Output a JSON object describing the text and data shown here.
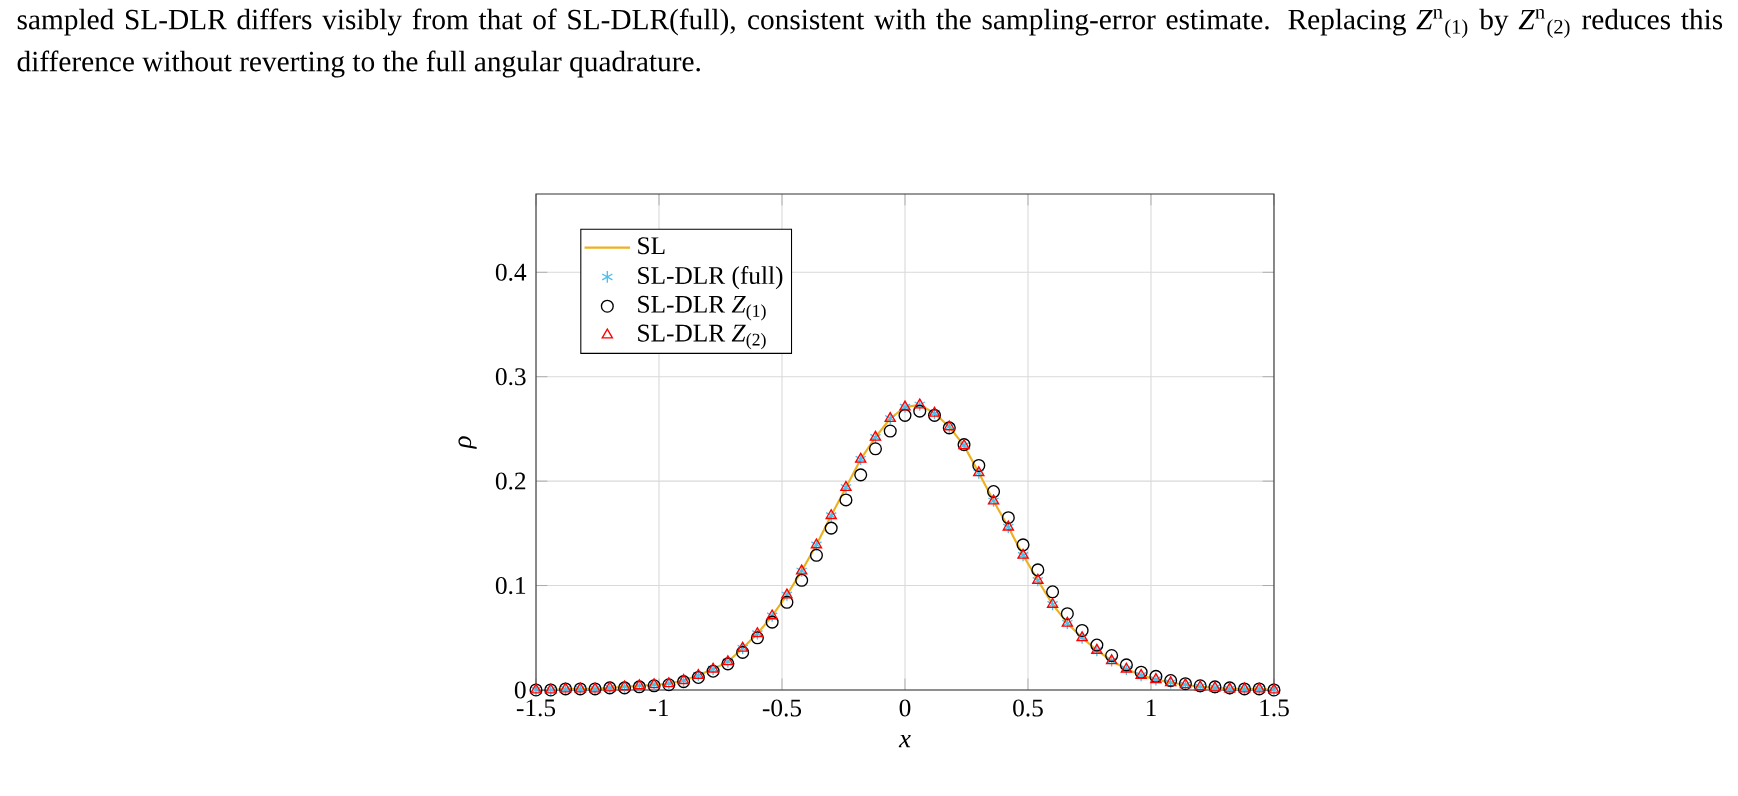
{
  "chart_data": {
    "type": "line",
    "annotations": [
      "sampled SL-DLR differs visibly from that of SL-DLR(full), consistent with the sampling-error estimate. Replacing *Z*$^{n}$$_{(1)}$ by *Z*$^{n}$$_{(2)}$ reduces this difference without reverting to the full angular quadrature."
    ],
    "xlabel": "x",
    "ylabel": "ρ",
    "x": [
      -1.5,
      -1.44,
      -1.38,
      -1.32,
      -1.26,
      -1.2,
      -1.14,
      -1.08,
      -1.02,
      -0.96,
      -0.9,
      -0.84,
      -0.78,
      -0.72,
      -0.66,
      -0.6,
      -0.54,
      -0.48,
      -0.42,
      -0.36,
      -0.3,
      -0.24,
      -0.18,
      -0.12,
      -0.06,
      0,
      0.06,
      0.12,
      0.18,
      0.24,
      0.3,
      0.36,
      0.42,
      0.48,
      0.54,
      0.6,
      0.66,
      0.72,
      0.78,
      0.84,
      0.9,
      0.96,
      1.02,
      1.08,
      1.14,
      1.2,
      1.26,
      1.32,
      1.38,
      1.44,
      1.5
    ],
    "series": [
      {
        "name": "SL",
        "color": "#edb120",
        "marker": "none",
        "values": [
          0,
          0,
          0.001,
          0.001,
          0.001,
          0.002,
          0.003,
          0.004,
          0.005,
          0.006,
          0.009,
          0.014,
          0.02,
          0.027,
          0.04,
          0.054,
          0.071,
          0.091,
          0.114,
          0.139,
          0.167,
          0.194,
          0.221,
          0.242,
          0.26,
          0.271,
          0.273,
          0.265,
          0.252,
          0.234,
          0.208,
          0.181,
          0.156,
          0.129,
          0.105,
          0.082,
          0.064,
          0.05,
          0.038,
          0.028,
          0.02,
          0.014,
          0.01,
          0.007,
          0.005,
          0.003,
          0.002,
          0.001,
          0.001,
          0.001,
          0
        ]
      },
      {
        "name": "SL-DLR (full)",
        "type": "scatter",
        "color": "#4dbeee",
        "marker": "cross",
        "values": [
          0,
          0,
          0.001,
          0.001,
          0.001,
          0.002,
          0.003,
          0.004,
          0.005,
          0.006,
          0.009,
          0.014,
          0.02,
          0.027,
          0.04,
          0.054,
          0.071,
          0.091,
          0.114,
          0.139,
          0.167,
          0.194,
          0.221,
          0.242,
          0.26,
          0.271,
          0.273,
          0.265,
          0.252,
          0.234,
          0.208,
          0.181,
          0.156,
          0.129,
          0.105,
          0.082,
          0.064,
          0.05,
          0.038,
          0.028,
          0.02,
          0.014,
          0.01,
          0.007,
          0.005,
          0.003,
          0.002,
          0.001,
          0.001,
          0.001,
          0
        ]
      },
      {
        "name": "SL-DLR *Z*$_{(1)}$",
        "type": "scatter",
        "color": "#000000",
        "marker": "circle",
        "values": [
          0,
          0,
          0.001,
          0.001,
          0.001,
          0.002,
          0.002,
          0.003,
          0.004,
          0.005,
          0.008,
          0.012,
          0.018,
          0.025,
          0.036,
          0.05,
          0.065,
          0.084,
          0.105,
          0.129,
          0.155,
          0.182,
          0.206,
          0.231,
          0.248,
          0.263,
          0.267,
          0.263,
          0.251,
          0.235,
          0.215,
          0.19,
          0.165,
          0.139,
          0.115,
          0.094,
          0.073,
          0.057,
          0.043,
          0.033,
          0.024,
          0.017,
          0.013,
          0.009,
          0.006,
          0.004,
          0.003,
          0.002,
          0.001,
          0.001,
          0
        ]
      },
      {
        "name": "SL-DLR *Z*$_{(2)}$",
        "type": "scatter",
        "color": "#ff0000",
        "marker": "triangle",
        "values": [
          0,
          0,
          0.001,
          0.001,
          0.001,
          0.002,
          0.003,
          0.004,
          0.005,
          0.006,
          0.009,
          0.014,
          0.02,
          0.027,
          0.04,
          0.054,
          0.071,
          0.091,
          0.114,
          0.139,
          0.167,
          0.194,
          0.221,
          0.242,
          0.26,
          0.271,
          0.273,
          0.265,
          0.252,
          0.234,
          0.208,
          0.181,
          0.156,
          0.129,
          0.105,
          0.082,
          0.064,
          0.05,
          0.038,
          0.028,
          0.02,
          0.014,
          0.01,
          0.007,
          0.005,
          0.003,
          0.002,
          0.001,
          0.001,
          0.001,
          0
        ]
      }
    ],
    "xlim": [
      -1.5,
      1.5
    ],
    "ylim": [
      0,
      0.475
    ],
    "xticks": [
      -1.5,
      -1,
      -0.5,
      0,
      0.5,
      1,
      1.5
    ],
    "yticks": [
      0,
      0.1,
      0.2,
      0.3,
      0.4
    ],
    "grid": true,
    "legend": "top left"
  }
}
